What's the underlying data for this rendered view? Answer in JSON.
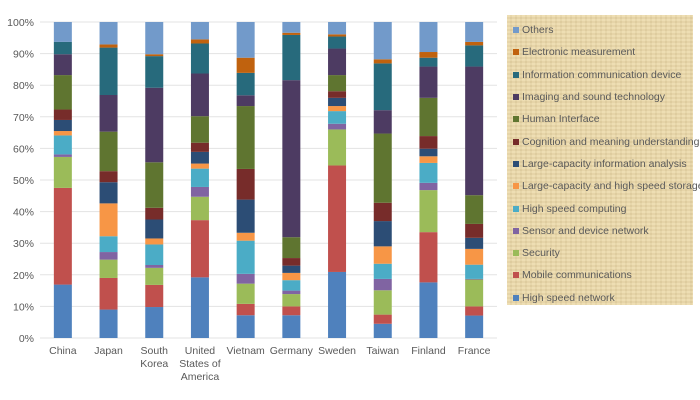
{
  "chart_data": {
    "type": "bar",
    "stacked": true,
    "percent_stacked": true,
    "categories": [
      "China",
      "Japan",
      "South Korea",
      "United States of America",
      "Vietnam",
      "Germany",
      "Sweden",
      "Taiwan",
      "Finland",
      "France"
    ],
    "category_lines": [
      [
        "China"
      ],
      [
        "Japan"
      ],
      [
        "South",
        "Korea"
      ],
      [
        "United",
        "States of",
        "America"
      ],
      [
        "Vietnam"
      ],
      [
        "Germany"
      ],
      [
        "Sweden"
      ],
      [
        "Taiwan"
      ],
      [
        "Finland"
      ],
      [
        "France"
      ]
    ],
    "yticks": [
      "0%",
      "10%",
      "20%",
      "30%",
      "40%",
      "50%",
      "60%",
      "70%",
      "80%",
      "90%",
      "100%"
    ],
    "ylim": [
      0,
      100
    ],
    "grid": true,
    "legend_placement": "right",
    "series": [
      {
        "name": "High speed network",
        "color": "#4f81bd",
        "values": [
          16.9,
          9.0,
          9.8,
          19.2,
          7.2,
          7.2,
          20.9,
          4.5,
          17.6,
          7.1
        ]
      },
      {
        "name": "Mobile communications",
        "color": "#c0504d",
        "values": [
          30.6,
          10.0,
          7.0,
          18.1,
          3.6,
          2.8,
          33.7,
          2.9,
          15.9,
          2.9
        ]
      },
      {
        "name": "Security",
        "color": "#9bbb59",
        "values": [
          9.8,
          5.8,
          5.4,
          7.4,
          6.4,
          3.9,
          11.4,
          7.7,
          13.3,
          8.5
        ]
      },
      {
        "name": "Sensor and device network",
        "color": "#8064a2",
        "values": [
          0.8,
          2.4,
          0.9,
          3.1,
          3.1,
          1.1,
          1.8,
          3.6,
          2.3,
          0.2
        ]
      },
      {
        "name": "High speed computing",
        "color": "#4bacc6",
        "values": [
          6.0,
          5.0,
          6.5,
          5.8,
          10.5,
          3.3,
          4.0,
          4.8,
          6.3,
          4.5
        ]
      },
      {
        "name": "Large-capacity and high speed storage",
        "color": "#f79646",
        "values": [
          1.4,
          10.4,
          1.9,
          1.6,
          2.5,
          2.3,
          1.6,
          5.5,
          2.1,
          5.0
        ]
      },
      {
        "name": "Large-capacity information analysis",
        "color": "#2c4d75",
        "values": [
          3.5,
          6.7,
          6.0,
          3.7,
          10.5,
          2.3,
          2.6,
          8.0,
          2.4,
          3.5
        ]
      },
      {
        "name": "Cognition and meaning understanding",
        "color": "#772c2a",
        "values": [
          3.3,
          3.5,
          3.7,
          2.9,
          9.7,
          2.4,
          2.1,
          5.8,
          4.0,
          4.4
        ]
      },
      {
        "name": "Human Interface",
        "color": "#5f7530",
        "values": [
          10.9,
          12.5,
          14.4,
          8.4,
          19.9,
          6.6,
          5.1,
          21.9,
          12.1,
          9.1
        ]
      },
      {
        "name": "Imaging and sound technology",
        "color": "#4d3b62",
        "values": [
          6.6,
          11.6,
          23.6,
          13.5,
          3.4,
          49.7,
          8.4,
          7.4,
          9.9,
          40.7
        ]
      },
      {
        "name": "Information communication device",
        "color": "#276a7c",
        "values": [
          3.9,
          15.0,
          10.0,
          9.5,
          7.1,
          14.3,
          3.8,
          14.8,
          2.8,
          6.7
        ]
      },
      {
        "name": "Electronic measurement",
        "color": "#c0620e",
        "values": [
          0.0,
          1.0,
          0.6,
          1.3,
          4.8,
          0.7,
          0.7,
          1.3,
          1.8,
          1.1
        ]
      },
      {
        "name": "Others",
        "color": "#729aca",
        "values": [
          6.3,
          7.1,
          10.2,
          5.5,
          11.3,
          3.4,
          3.9,
          11.8,
          9.5,
          6.3
        ]
      }
    ]
  }
}
